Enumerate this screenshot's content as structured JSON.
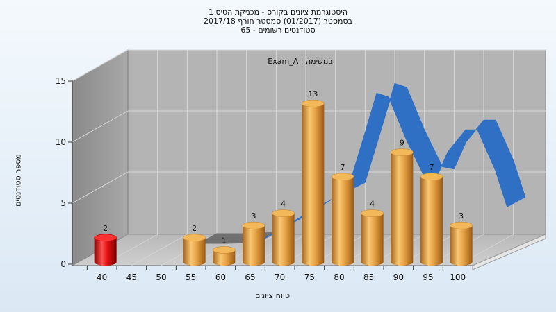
{
  "chart_data": {
    "type": "bar",
    "title_lines": [
      "היסטוגרמת ציונים בקורס - מכניקת הטיס 1",
      "בסמסטר (01/2017) סמסטר חורף 2017/18",
      "65 - סטודנטים רשומים"
    ],
    "annotation": "Exam_A : במשימה",
    "xlabel": "טווח ציונים",
    "ylabel": "מספר סטודנטים",
    "categories": [
      "40",
      "45",
      "50",
      "55",
      "60",
      "65",
      "70",
      "75",
      "80",
      "85",
      "90",
      "95",
      "100"
    ],
    "yticks": [
      "0",
      "5",
      "10",
      "15"
    ],
    "ylim": [
      0,
      15
    ],
    "bars": [
      {
        "x": 40,
        "value": 2,
        "label": "2",
        "color": "#e81414"
      },
      {
        "x": 55,
        "value": 2,
        "label": "2",
        "color": "#e8a040"
      },
      {
        "x": 60,
        "value": 1,
        "label": "1",
        "color": "#e8a040"
      },
      {
        "x": 65,
        "value": 3,
        "label": "3",
        "color": "#e8a040"
      },
      {
        "x": 70,
        "value": 4,
        "label": "4",
        "color": "#e8a040"
      },
      {
        "x": 75,
        "value": 13,
        "label": "13",
        "color": "#e8a040"
      },
      {
        "x": 80,
        "value": 7,
        "label": "7",
        "color": "#e8a040"
      },
      {
        "x": 85,
        "value": 4,
        "label": "4",
        "color": "#e8a040"
      },
      {
        "x": 90,
        "value": 9,
        "label": "9",
        "color": "#e8a040"
      },
      {
        "x": 95,
        "value": 7,
        "label": "7",
        "color": "#e8a040"
      },
      {
        "x": 100,
        "value": 3,
        "label": "3",
        "color": "#e8a040"
      }
    ],
    "curve": {
      "color": "#2f6fc4",
      "gray_color": "#707070",
      "points": [
        [
          50,
          0.0
        ],
        [
          55,
          0.0
        ],
        [
          60,
          0.1
        ],
        [
          65,
          1.5
        ],
        [
          70,
          3.0
        ],
        [
          75,
          4.2
        ],
        [
          78,
          9.0
        ],
        [
          80,
          12.3
        ],
        [
          82,
          12.0
        ],
        [
          85,
          8.5
        ],
        [
          88,
          5.5
        ],
        [
          90,
          5.3
        ],
        [
          92,
          7.5
        ],
        [
          95,
          9.3
        ],
        [
          97,
          9.3
        ],
        [
          100,
          6.0
        ],
        [
          102,
          3.0
        ]
      ]
    },
    "grid": true,
    "legend": "none"
  }
}
